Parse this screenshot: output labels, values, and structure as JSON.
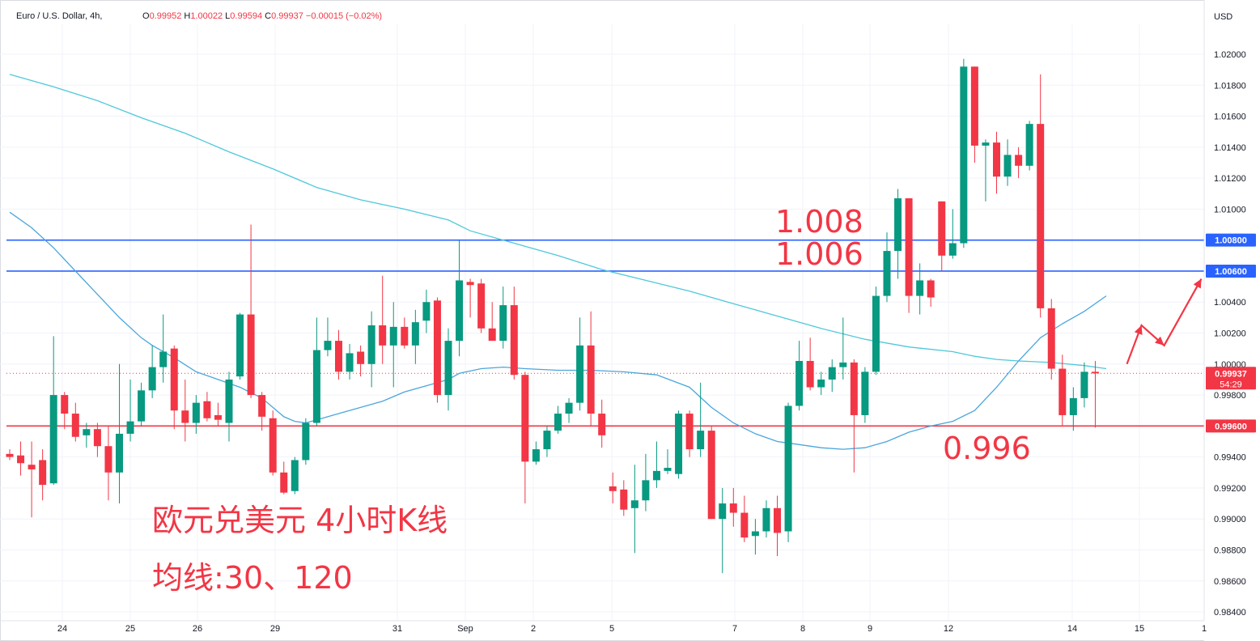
{
  "header": {
    "symbol": "Euro / U.S. Dollar, 4h,",
    "o_label": "O",
    "o_value": "0.99952",
    "h_label": "H",
    "h_value": "1.00022",
    "l_label": "L",
    "l_value": "0.99594",
    "c_label": "C",
    "c_value": "0.99937",
    "change": "−0.00015 (−0.02%)"
  },
  "price_axis": {
    "currency": "USD",
    "ticks": [
      "1.02000",
      "1.01800",
      "1.01600",
      "1.01400",
      "1.01200",
      "1.01000",
      "1.00400",
      "1.00200",
      "1.00000",
      "0.99800",
      "0.99400",
      "0.99200",
      "0.99000",
      "0.98800",
      "0.98600",
      "0.98400"
    ],
    "current_price": "0.99937",
    "countdown": "54:29"
  },
  "time_axis": {
    "labels": [
      "24",
      "25",
      "26",
      "29",
      "31",
      "Sep",
      "2",
      "5",
      "7",
      "8",
      "9",
      "12",
      "14",
      "15",
      "1"
    ]
  },
  "annotations": {
    "title_line1": "欧元兑美元 4小时K线",
    "title_line2": "均线:30、120",
    "label_1008": "1.008",
    "label_1006": "1.006",
    "label_0996": "0.996"
  },
  "colors": {
    "up": "#089981",
    "down": "#f23645",
    "ma30": "#4aa6dc",
    "ma120": "#4fc8d9",
    "resistance": "#2962ff",
    "support": "#f23645",
    "annotation": "#f23645"
  },
  "chart_data": {
    "type": "candlestick",
    "symbol": "EURUSD",
    "timeframe": "4h",
    "y_range": [
      0.9838,
      1.0225
    ],
    "horizontal_lines": [
      {
        "price": 1.008,
        "label": "1.00800",
        "color": "resistance"
      },
      {
        "price": 1.006,
        "label": "1.00600",
        "color": "resistance"
      },
      {
        "price": 0.996,
        "label": "0.99600",
        "color": "support"
      }
    ],
    "candles": [
      {
        "o": 0.9942,
        "h": 0.9945,
        "l": 0.9938,
        "c": 0.994
      },
      {
        "o": 0.9941,
        "h": 0.995,
        "l": 0.9928,
        "c": 0.9936
      },
      {
        "o": 0.9935,
        "h": 0.995,
        "l": 0.9901,
        "c": 0.9932
      },
      {
        "o": 0.9938,
        "h": 0.9945,
        "l": 0.9912,
        "c": 0.9922
      },
      {
        "o": 0.9923,
        "h": 1.0018,
        "l": 0.9922,
        "c": 0.998
      },
      {
        "o": 0.998,
        "h": 0.9982,
        "l": 0.9958,
        "c": 0.9968
      },
      {
        "o": 0.9968,
        "h": 0.9975,
        "l": 0.995,
        "c": 0.9953
      },
      {
        "o": 0.9954,
        "h": 0.9962,
        "l": 0.9946,
        "c": 0.9958
      },
      {
        "o": 0.9958,
        "h": 0.9962,
        "l": 0.994,
        "c": 0.9947
      },
      {
        "o": 0.9947,
        "h": 0.996,
        "l": 0.9912,
        "c": 0.993
      },
      {
        "o": 0.993,
        "h": 1.0,
        "l": 0.991,
        "c": 0.9955
      },
      {
        "o": 0.9955,
        "h": 0.999,
        "l": 0.995,
        "c": 0.9963
      },
      {
        "o": 0.9963,
        "h": 0.9988,
        "l": 0.996,
        "c": 0.9983
      },
      {
        "o": 0.9983,
        "h": 1.0012,
        "l": 0.9978,
        "c": 0.9998
      },
      {
        "o": 0.9998,
        "h": 1.0032,
        "l": 0.9988,
        "c": 1.0008
      },
      {
        "o": 1.001,
        "h": 1.0012,
        "l": 0.9958,
        "c": 0.997
      },
      {
        "o": 0.997,
        "h": 0.999,
        "l": 0.995,
        "c": 0.9962
      },
      {
        "o": 0.9962,
        "h": 0.998,
        "l": 0.9955,
        "c": 0.9975
      },
      {
        "o": 0.9976,
        "h": 0.9982,
        "l": 0.9963,
        "c": 0.9965
      },
      {
        "o": 0.9967,
        "h": 0.9975,
        "l": 0.996,
        "c": 0.9964
      },
      {
        "o": 0.9962,
        "h": 0.9995,
        "l": 0.995,
        "c": 0.999
      },
      {
        "o": 0.9992,
        "h": 1.0033,
        "l": 0.999,
        "c": 1.0032
      },
      {
        "o": 1.0032,
        "h": 1.009,
        "l": 0.9978,
        "c": 0.998
      },
      {
        "o": 0.998,
        "h": 0.9982,
        "l": 0.9957,
        "c": 0.9966
      },
      {
        "o": 0.9965,
        "h": 0.997,
        "l": 0.9928,
        "c": 0.993
      },
      {
        "o": 0.993,
        "h": 0.9937,
        "l": 0.9916,
        "c": 0.9917
      },
      {
        "o": 0.9918,
        "h": 0.994,
        "l": 0.9916,
        "c": 0.9938
      },
      {
        "o": 0.9938,
        "h": 0.9965,
        "l": 0.9935,
        "c": 0.9962
      },
      {
        "o": 0.9962,
        "h": 1.003,
        "l": 0.996,
        "c": 1.0009
      },
      {
        "o": 1.0009,
        "h": 1.003,
        "l": 1.0005,
        "c": 1.0015
      },
      {
        "o": 1.0015,
        "h": 1.0022,
        "l": 0.999,
        "c": 0.9995
      },
      {
        "o": 0.9995,
        "h": 1.0013,
        "l": 0.999,
        "c": 1.0007
      },
      {
        "o": 1.0008,
        "h": 1.0012,
        "l": 0.9992,
        "c": 1.0
      },
      {
        "o": 1.0,
        "h": 1.0034,
        "l": 0.9985,
        "c": 1.0025
      },
      {
        "o": 1.0025,
        "h": 1.0057,
        "l": 1.0,
        "c": 1.0012
      },
      {
        "o": 1.0012,
        "h": 1.004,
        "l": 0.9985,
        "c": 1.0024
      },
      {
        "o": 1.0024,
        "h": 1.003,
        "l": 1.001,
        "c": 1.0012
      },
      {
        "o": 1.0012,
        "h": 1.0035,
        "l": 1.0,
        "c": 1.0027
      },
      {
        "o": 1.0028,
        "h": 1.0048,
        "l": 1.002,
        "c": 1.004
      },
      {
        "o": 1.0041,
        "h": 1.0043,
        "l": 0.9975,
        "c": 0.998
      },
      {
        "o": 0.998,
        "h": 1.0023,
        "l": 0.997,
        "c": 1.0015
      },
      {
        "o": 1.0015,
        "h": 1.008,
        "l": 1.0005,
        "c": 1.0054
      },
      {
        "o": 1.0053,
        "h": 1.0055,
        "l": 1.003,
        "c": 1.0051
      },
      {
        "o": 1.0052,
        "h": 1.0055,
        "l": 1.002,
        "c": 1.0023
      },
      {
        "o": 1.0023,
        "h": 1.004,
        "l": 1.0015,
        "c": 1.0015
      },
      {
        "o": 1.0015,
        "h": 1.005,
        "l": 1.001,
        "c": 1.0038
      },
      {
        "o": 1.0038,
        "h": 1.005,
        "l": 0.999,
        "c": 0.9993
      },
      {
        "o": 0.9993,
        "h": 0.9995,
        "l": 0.991,
        "c": 0.9937
      },
      {
        "o": 0.9937,
        "h": 0.995,
        "l": 0.9935,
        "c": 0.9945
      },
      {
        "o": 0.9945,
        "h": 0.996,
        "l": 0.994,
        "c": 0.9957
      },
      {
        "o": 0.9957,
        "h": 0.9973,
        "l": 0.9955,
        "c": 0.9968
      },
      {
        "o": 0.9968,
        "h": 0.9978,
        "l": 0.9962,
        "c": 0.9975
      },
      {
        "o": 0.9975,
        "h": 1.003,
        "l": 0.997,
        "c": 1.0012
      },
      {
        "o": 1.0012,
        "h": 1.0034,
        "l": 0.996,
        "c": 0.9968
      },
      {
        "o": 0.9968,
        "h": 0.9977,
        "l": 0.9946,
        "c": 0.9954
      },
      {
        "o": 0.9921,
        "h": 0.993,
        "l": 0.991,
        "c": 0.9918
      },
      {
        "o": 0.9919,
        "h": 0.9925,
        "l": 0.9902,
        "c": 0.9906
      },
      {
        "o": 0.9907,
        "h": 0.9935,
        "l": 0.9878,
        "c": 0.9912
      },
      {
        "o": 0.9912,
        "h": 0.9942,
        "l": 0.9905,
        "c": 0.9925
      },
      {
        "o": 0.9925,
        "h": 0.995,
        "l": 0.992,
        "c": 0.9931
      },
      {
        "o": 0.9931,
        "h": 0.9945,
        "l": 0.9929,
        "c": 0.9933
      },
      {
        "o": 0.9929,
        "h": 0.997,
        "l": 0.9926,
        "c": 0.9968
      },
      {
        "o": 0.9968,
        "h": 0.997,
        "l": 0.994,
        "c": 0.9945
      },
      {
        "o": 0.9945,
        "h": 0.9988,
        "l": 0.994,
        "c": 0.9957
      },
      {
        "o": 0.9957,
        "h": 0.996,
        "l": 0.99,
        "c": 0.99
      },
      {
        "o": 0.99,
        "h": 0.992,
        "l": 0.9865,
        "c": 0.991
      },
      {
        "o": 0.991,
        "h": 0.992,
        "l": 0.9895,
        "c": 0.9904
      },
      {
        "o": 0.9904,
        "h": 0.9915,
        "l": 0.9885,
        "c": 0.9888
      },
      {
        "o": 0.9889,
        "h": 0.99,
        "l": 0.9877,
        "c": 0.9892
      },
      {
        "o": 0.9892,
        "h": 0.9912,
        "l": 0.9888,
        "c": 0.9907
      },
      {
        "o": 0.9907,
        "h": 0.9915,
        "l": 0.9876,
        "c": 0.9891
      },
      {
        "o": 0.9892,
        "h": 0.9975,
        "l": 0.9885,
        "c": 0.9973
      },
      {
        "o": 0.9973,
        "h": 1.0015,
        "l": 0.997,
        "c": 1.0002
      },
      {
        "o": 1.0002,
        "h": 1.0017,
        "l": 0.9983,
        "c": 0.9985
      },
      {
        "o": 0.9985,
        "h": 0.9995,
        "l": 0.998,
        "c": 0.999
      },
      {
        "o": 0.999,
        "h": 1.0003,
        "l": 0.9982,
        "c": 0.9998
      },
      {
        "o": 0.9998,
        "h": 1.003,
        "l": 0.999,
        "c": 1.0001
      },
      {
        "o": 1.0001,
        "h": 1.0003,
        "l": 0.993,
        "c": 0.9967
      },
      {
        "o": 0.9967,
        "h": 0.9998,
        "l": 0.9962,
        "c": 0.9995
      },
      {
        "o": 0.9995,
        "h": 1.005,
        "l": 0.9993,
        "c": 1.0044
      },
      {
        "o": 1.0044,
        "h": 1.0085,
        "l": 1.004,
        "c": 1.0073
      },
      {
        "o": 1.0073,
        "h": 1.0113,
        "l": 1.0055,
        "c": 1.0107
      },
      {
        "o": 1.0107,
        "h": 1.0107,
        "l": 1.0033,
        "c": 1.0044
      },
      {
        "o": 1.0044,
        "h": 1.0065,
        "l": 1.0032,
        "c": 1.0054
      },
      {
        "o": 1.0054,
        "h": 1.0055,
        "l": 1.0037,
        "c": 1.0043
      },
      {
        "o": 1.0105,
        "h": 1.0105,
        "l": 1.006,
        "c": 1.007
      },
      {
        "o": 1.007,
        "h": 1.01,
        "l": 1.0068,
        "c": 1.0078
      },
      {
        "o": 1.0078,
        "h": 1.0197,
        "l": 1.0075,
        "c": 1.0192
      },
      {
        "o": 1.0192,
        "h": 1.0192,
        "l": 1.013,
        "c": 1.0141
      },
      {
        "o": 1.0141,
        "h": 1.0145,
        "l": 1.0105,
        "c": 1.0143
      },
      {
        "o": 1.0143,
        "h": 1.015,
        "l": 1.011,
        "c": 1.0121
      },
      {
        "o": 1.0121,
        "h": 1.0145,
        "l": 1.0115,
        "c": 1.0135
      },
      {
        "o": 1.0135,
        "h": 1.014,
        "l": 1.012,
        "c": 1.0128
      },
      {
        "o": 1.0128,
        "h": 1.0157,
        "l": 1.0125,
        "c": 1.0155
      },
      {
        "o": 1.0155,
        "h": 1.0187,
        "l": 1.003,
        "c": 1.0036
      },
      {
        "o": 1.0036,
        "h": 1.0042,
        "l": 0.999,
        "c": 0.9997
      },
      {
        "o": 0.9997,
        "h": 1.0006,
        "l": 0.996,
        "c": 0.9967
      },
      {
        "o": 0.9967,
        "h": 0.9985,
        "l": 0.9957,
        "c": 0.9978
      },
      {
        "o": 0.9978,
        "h": 1.0001,
        "l": 0.9972,
        "c": 0.9995
      },
      {
        "o": 0.9995,
        "h": 1.0002,
        "l": 0.9959,
        "c": 0.9994
      }
    ],
    "ma30": [
      [
        0,
        1.0098
      ],
      [
        2,
        1.0088
      ],
      [
        4,
        1.0075
      ],
      [
        6,
        1.006
      ],
      [
        8,
        1.0045
      ],
      [
        10,
        1.003
      ],
      [
        12,
        1.0017
      ],
      [
        13,
        1.0012
      ],
      [
        15,
        1.0004
      ],
      [
        17,
        0.9995
      ],
      [
        19,
        0.999
      ],
      [
        21,
        0.9985
      ],
      [
        23,
        0.9978
      ],
      [
        25,
        0.9966
      ],
      [
        26,
        0.9963
      ],
      [
        27,
        0.9962
      ],
      [
        28,
        0.9964
      ],
      [
        30,
        0.9968
      ],
      [
        32,
        0.9972
      ],
      [
        34,
        0.9976
      ],
      [
        36,
        0.9982
      ],
      [
        38,
        0.9986
      ],
      [
        40,
        0.999
      ],
      [
        41,
        0.9994
      ],
      [
        43,
        0.9997
      ],
      [
        45,
        0.9998
      ],
      [
        47,
        0.9997
      ],
      [
        50,
        0.9996
      ],
      [
        53,
        0.9996
      ],
      [
        56,
        0.9995
      ],
      [
        59,
        0.9993
      ],
      [
        62,
        0.9985
      ],
      [
        64,
        0.9972
      ],
      [
        66,
        0.9962
      ],
      [
        68,
        0.9955
      ],
      [
        70,
        0.995
      ],
      [
        72,
        0.9948
      ],
      [
        74,
        0.9946
      ],
      [
        76,
        0.9945
      ],
      [
        78,
        0.9946
      ],
      [
        80,
        0.995
      ],
      [
        82,
        0.9956
      ],
      [
        84,
        0.996
      ],
      [
        86,
        0.9963
      ],
      [
        88,
        0.997
      ],
      [
        90,
        0.9985
      ],
      [
        92,
        1.0002
      ],
      [
        94,
        1.0017
      ],
      [
        96,
        1.0026
      ],
      [
        98,
        1.0034
      ],
      [
        100,
        1.0044
      ]
    ],
    "ma120": [
      [
        0,
        1.0187
      ],
      [
        4,
        1.0179
      ],
      [
        8,
        1.017
      ],
      [
        12,
        1.0159
      ],
      [
        16,
        1.0149
      ],
      [
        20,
        1.0137
      ],
      [
        24,
        1.0126
      ],
      [
        28,
        1.0114
      ],
      [
        32,
        1.0106
      ],
      [
        36,
        1.01
      ],
      [
        40,
        1.0093
      ],
      [
        42,
        1.0086
      ],
      [
        46,
        1.0078
      ],
      [
        50,
        1.007
      ],
      [
        54,
        1.0061
      ],
      [
        58,
        1.0054
      ],
      [
        62,
        1.0047
      ],
      [
        66,
        1.0039
      ],
      [
        70,
        1.0031
      ],
      [
        74,
        1.0023
      ],
      [
        78,
        1.0016
      ],
      [
        82,
        1.0011
      ],
      [
        86,
        1.0008
      ],
      [
        88,
        1.0005
      ],
      [
        90,
        1.0003
      ],
      [
        92,
        1.0002
      ],
      [
        95,
        1.0001
      ],
      [
        98,
        0.9999
      ],
      [
        100,
        0.9997
      ]
    ]
  }
}
